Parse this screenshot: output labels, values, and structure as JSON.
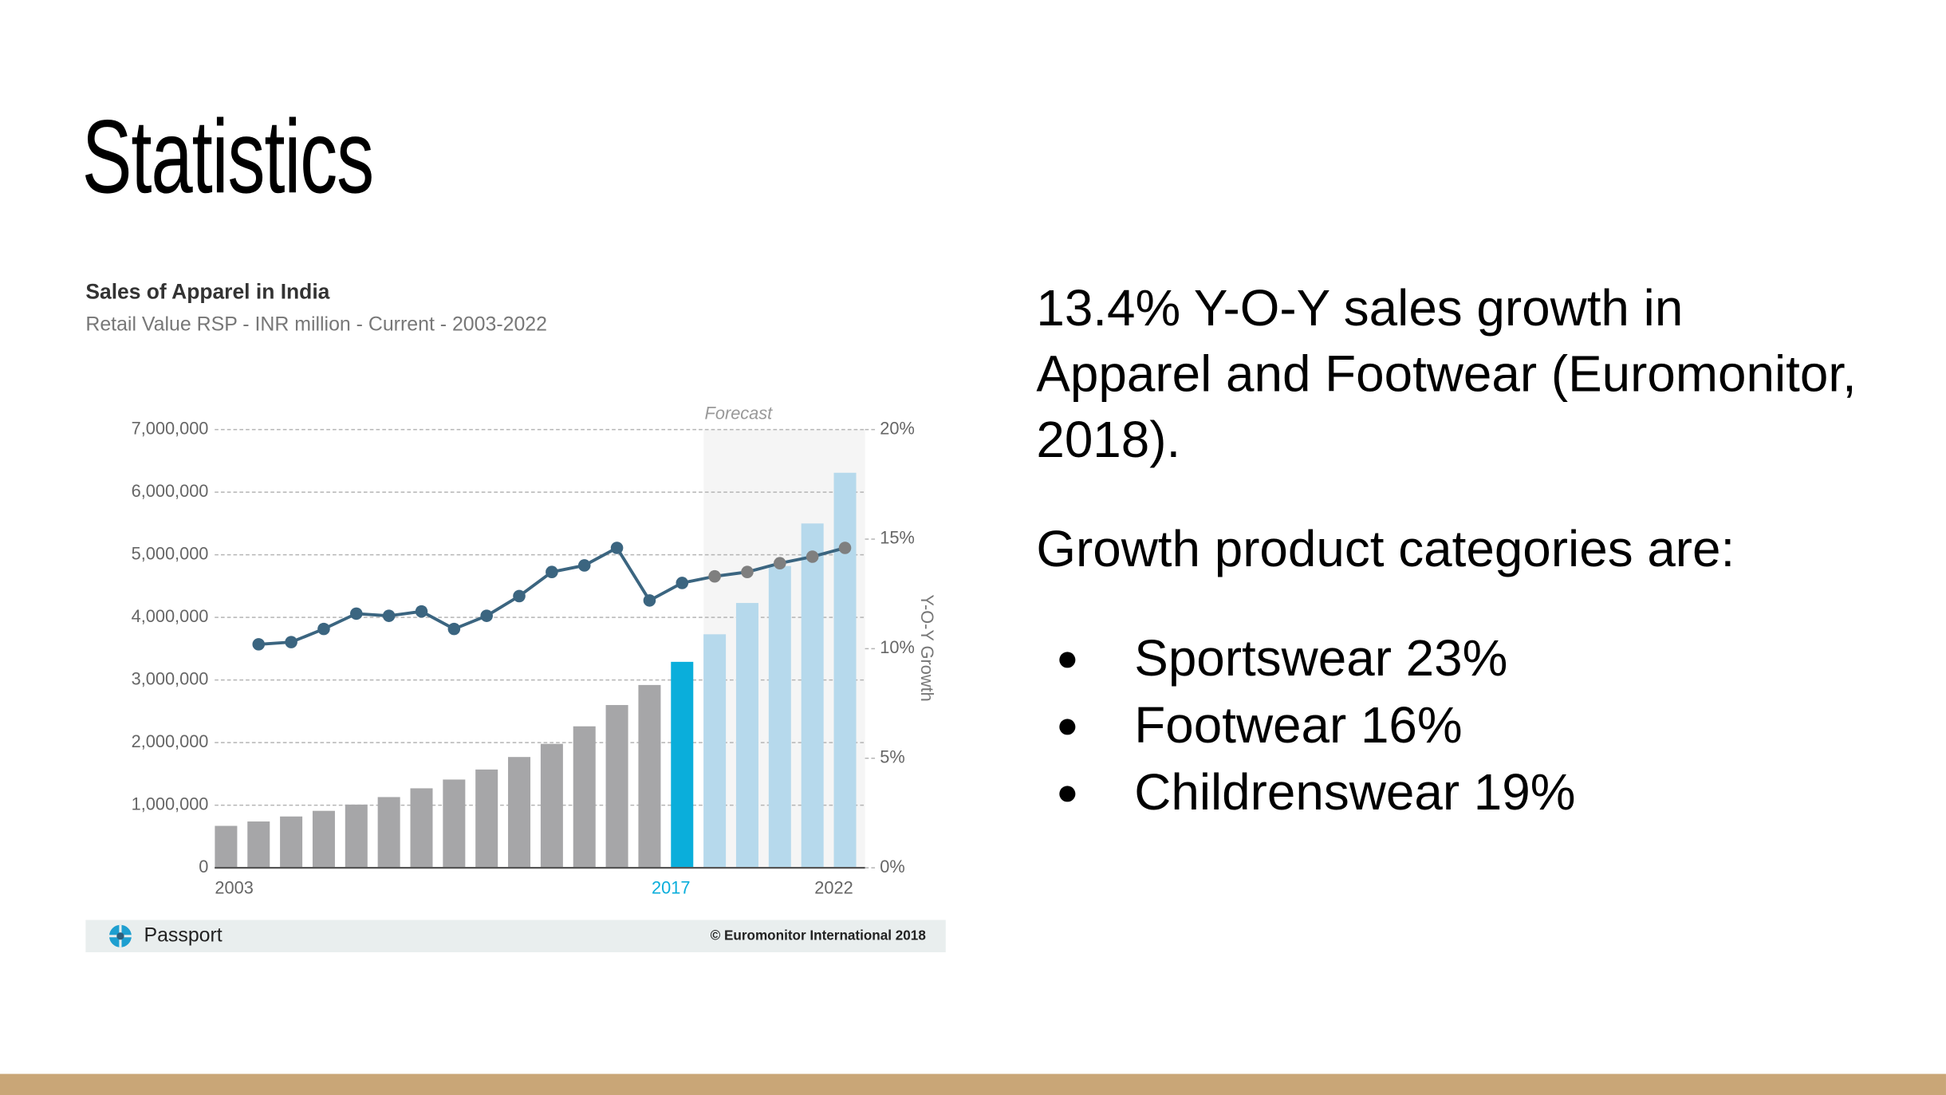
{
  "slide": {
    "title": "Statistics",
    "paragraph": "13.4% Y-O-Y sales growth in Apparel and Footwear (Euromonitor, 2018).",
    "intro": "Growth product categories are:",
    "bullets": [
      "Sportswear 23%",
      "Footwear 16%",
      "Childrenswear 19%"
    ]
  },
  "chart_data": {
    "type": "bar_line",
    "title": "Sales of Apparel in India",
    "subtitle": "Retail Value RSP - INR million - Current - 2003-2022",
    "y2_label": "Y-O-Y Growth",
    "annotation": "Forecast",
    "source_brand": "Passport",
    "copyright": "© Euromonitor International 2018",
    "categories": [
      "2003",
      null,
      null,
      null,
      null,
      null,
      null,
      null,
      null,
      null,
      null,
      null,
      null,
      null,
      "2017",
      null,
      null,
      null,
      null,
      "2022"
    ],
    "highlight_color": "#0aaedb",
    "label_color": "#666666",
    "series": [
      {
        "type": "bar",
        "values": [
          670000,
          740000,
          820000,
          910000,
          1010000,
          1130000,
          1270000,
          1410000,
          1570000,
          1770000,
          1980000,
          2260000,
          2600000,
          2920000,
          3290000,
          3730000,
          4230000,
          4820000,
          5500000,
          6310000
        ],
        "colors": [
          "#a6a6a8",
          "#a6a6a8",
          "#a6a6a8",
          "#a6a6a8",
          "#a6a6a8",
          "#a6a6a8",
          "#a6a6a8",
          "#a6a6a8",
          "#a6a6a8",
          "#a6a6a8",
          "#a6a6a8",
          "#a6a6a8",
          "#a6a6a8",
          "#a6a6a8",
          "#0aaedb",
          "#b6d9ec",
          "#b6d9ec",
          "#b6d9ec",
          "#b6d9ec",
          "#b6d9ec"
        ]
      },
      {
        "type": "line",
        "axis": "y2",
        "color": "#3b6580",
        "values": [
          null,
          10.2,
          10.3,
          10.9,
          11.6,
          11.5,
          11.7,
          10.9,
          11.5,
          12.4,
          13.5,
          13.8,
          14.6,
          12.2,
          13.0,
          13.3,
          13.5,
          13.9,
          14.2,
          14.6
        ],
        "marker_colors": [
          null,
          "#3b6580",
          "#3b6580",
          "#3b6580",
          "#3b6580",
          "#3b6580",
          "#3b6580",
          "#3b6580",
          "#3b6580",
          "#3b6580",
          "#3b6580",
          "#3b6580",
          "#3b6580",
          "#3b6580",
          "#3b6580",
          "#7f7f7f",
          "#7f7f7f",
          "#7f7f7f",
          "#7f7f7f",
          "#7f7f7f"
        ]
      }
    ],
    "ylim": [
      0,
      7000000
    ],
    "yticks": [
      {
        "value": 0,
        "label": "0"
      },
      {
        "value": 1000000,
        "label": "1,000,000"
      },
      {
        "value": 2000000,
        "label": "2,000,000"
      },
      {
        "value": 3000000,
        "label": "3,000,000"
      },
      {
        "value": 4000000,
        "label": "4,000,000"
      },
      {
        "value": 5000000,
        "label": "5,000,000"
      },
      {
        "value": 6000000,
        "label": "6,000,000"
      },
      {
        "value": 7000000,
        "label": "7,000,000"
      }
    ],
    "y2lim": [
      0,
      20
    ],
    "y2ticks": [
      {
        "value": 0,
        "label": "0%"
      },
      {
        "value": 5,
        "label": "5%"
      },
      {
        "value": 10,
        "label": "10%"
      },
      {
        "value": 15,
        "label": "15%"
      },
      {
        "value": 20,
        "label": "20%"
      }
    ],
    "grid": true
  }
}
